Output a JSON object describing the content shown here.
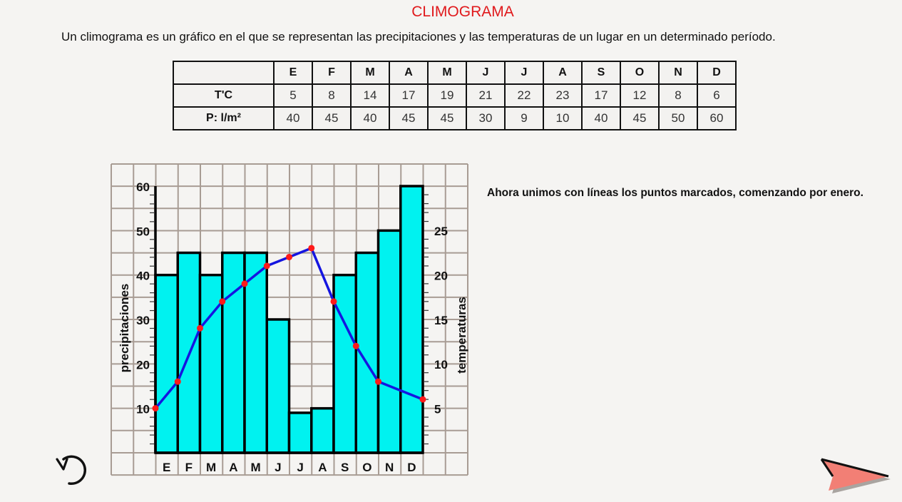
{
  "header": {
    "title": "CLIMOGRAMA",
    "intro": "Un climograma es un gráfico en el que se representan las precipitaciones y las temperaturas de un lugar en un determinado período."
  },
  "table": {
    "months": [
      "E",
      "F",
      "M",
      "A",
      "M",
      "J",
      "J",
      "A",
      "S",
      "O",
      "N",
      "D"
    ],
    "temp_label": "T'C",
    "temps": [
      "5",
      "8",
      "14",
      "17",
      "19",
      "21",
      "22",
      "23",
      "17",
      "12",
      "8",
      "6"
    ],
    "precip_label": "P: l/m²",
    "precips": [
      "40",
      "45",
      "40",
      "45",
      "45",
      "30",
      "9",
      "10",
      "40",
      "45",
      "50",
      "60"
    ]
  },
  "side_text": "Ahora unimos con líneas los puntos marcados, comenzando por enero.",
  "controls": {
    "replay_icon": "replay-icon",
    "next_icon": "next-arrow-icon"
  },
  "colors": {
    "title": "#e0191c",
    "bar_fill": "#00f2f0",
    "line": "#1515e0",
    "marker": "#ff1a1a",
    "grid": "#a89c94",
    "next_arrow": "#f27f75"
  },
  "chart_data": {
    "type": "bar",
    "title": "Climograma",
    "categories": [
      "E",
      "F",
      "M",
      "A",
      "M",
      "J",
      "J",
      "A",
      "S",
      "O",
      "N",
      "D"
    ],
    "series": [
      {
        "name": "precipitaciones",
        "type": "bar",
        "axis": "left",
        "values": [
          40,
          45,
          40,
          45,
          45,
          30,
          9,
          10,
          40,
          45,
          50,
          60
        ]
      },
      {
        "name": "temperaturas",
        "type": "line",
        "axis": "right",
        "values": [
          5,
          8,
          14,
          17,
          19,
          21,
          22,
          23,
          17,
          12,
          8,
          6
        ]
      }
    ],
    "ylabel": "precipitaciones",
    "y2label": "temperaturas",
    "ylim": [
      0,
      60
    ],
    "y2lim": [
      0,
      30
    ],
    "yticks": [
      "10",
      "20",
      "30",
      "40",
      "50",
      "60"
    ],
    "y2ticks": [
      "5",
      "10",
      "15",
      "20",
      "25"
    ],
    "grid": true
  }
}
